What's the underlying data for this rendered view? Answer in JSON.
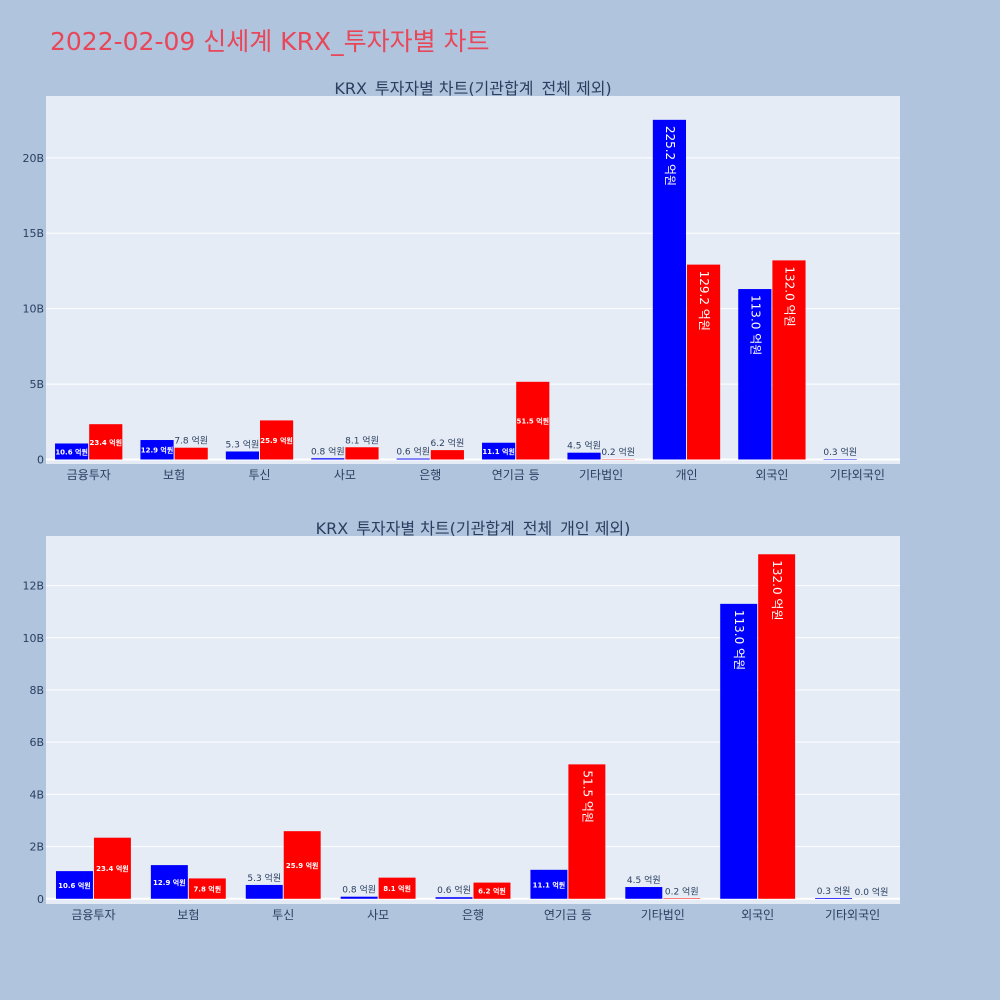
{
  "main_title": "2022-02-09 신세계 KRX_투자자별 차트",
  "chart_data": [
    {
      "type": "bar",
      "title": "KRX_투자자별 차트(기관합계_전체 제외)",
      "categories": [
        "금융투자",
        "보험",
        "투신",
        "사모",
        "은행",
        "연기금 등",
        "기타법인",
        "개인",
        "외국인",
        "기타외국인"
      ],
      "series": [
        {
          "color": "#0000ff",
          "values": [
            1.06,
            1.29,
            0.53,
            0.08,
            0.06,
            1.11,
            0.45,
            22.52,
            11.3,
            0.03
          ],
          "labels": [
            "10.6 억원",
            "12.9 억원",
            "5.3 억원",
            "0.8 억원",
            "0.6 억원",
            "11.1 억원",
            "4.5 억원",
            "225.2 억원",
            "113.0 억원",
            "0.3 억원"
          ]
        },
        {
          "color": "#ff0000",
          "values": [
            2.34,
            0.78,
            2.59,
            0.81,
            0.62,
            5.15,
            0.02,
            12.92,
            13.2,
            0.0
          ],
          "labels": [
            "23.4 억원",
            "7.8 억원",
            "25.9 억원",
            "8.1 억원",
            "6.2 억원",
            "51.5 억원",
            "0.2 억원",
            "129.2 억원",
            "132.0 억원",
            ""
          ]
        }
      ],
      "yticks": [
        "0",
        "5B",
        "10B",
        "15B",
        "20B"
      ],
      "ytick_values": [
        0,
        5,
        10,
        15,
        20
      ],
      "ylim": [
        -0.3,
        24.1
      ]
    },
    {
      "type": "bar",
      "title": "KRX_투자자별 차트(기관합계_전체_개인 제외)",
      "categories": [
        "금융투자",
        "보험",
        "투신",
        "사모",
        "은행",
        "연기금 등",
        "기타법인",
        "외국인",
        "기타외국인"
      ],
      "series": [
        {
          "color": "#0000ff",
          "values": [
            1.06,
            1.29,
            0.53,
            0.08,
            0.06,
            1.11,
            0.45,
            11.3,
            0.03
          ],
          "labels": [
            "10.6 억원",
            "12.9 억원",
            "5.3 억원",
            "0.8 억원",
            "0.6 억원",
            "11.1 억원",
            "4.5 억원",
            "113.0 억원",
            "0.3 억원"
          ]
        },
        {
          "color": "#ff0000",
          "values": [
            2.34,
            0.78,
            2.59,
            0.81,
            0.62,
            5.15,
            0.02,
            13.2,
            0.0
          ],
          "labels": [
            "23.4 억원",
            "7.8 억원",
            "25.9 억원",
            "8.1 억원",
            "6.2 억원",
            "51.5 억원",
            "0.2 억원",
            "132.0 억원",
            "0.0 억원"
          ]
        }
      ],
      "yticks": [
        "0",
        "2B",
        "4B",
        "6B",
        "8B",
        "10B",
        "12B"
      ],
      "ytick_values": [
        0,
        2,
        4,
        6,
        8,
        10,
        12
      ],
      "ylim": [
        -0.2,
        13.9
      ]
    }
  ]
}
